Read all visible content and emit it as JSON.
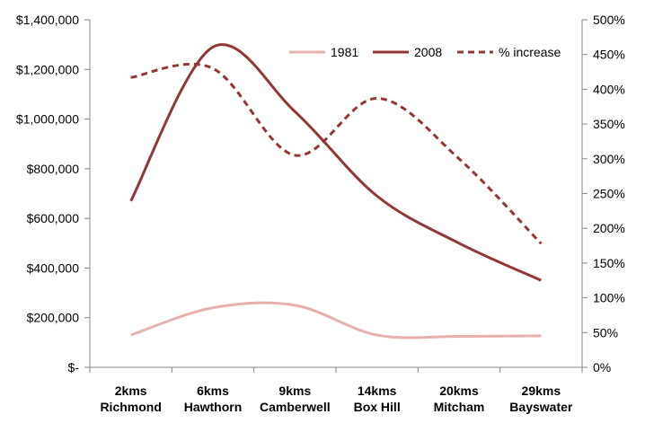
{
  "chart_data": {
    "type": "line",
    "categories": [
      [
        "2kms",
        "Richmond"
      ],
      [
        "6kms",
        "Hawthorn"
      ],
      [
        "9kms",
        "Camberwell"
      ],
      [
        "14kms",
        "Box Hill"
      ],
      [
        "20kms",
        "Mitcham"
      ],
      [
        "29kms",
        "Bayswater"
      ]
    ],
    "y_left": {
      "ylim": [
        0,
        1400000
      ],
      "ticks": [
        {
          "value": 0,
          "label": "$-"
        },
        {
          "value": 200000,
          "label": "$200,000"
        },
        {
          "value": 400000,
          "label": "$400,000"
        },
        {
          "value": 600000,
          "label": "$600,000"
        },
        {
          "value": 800000,
          "label": "$800,000"
        },
        {
          "value": 1000000,
          "label": "$1,000,000"
        },
        {
          "value": 1200000,
          "label": "$1,200,000"
        },
        {
          "value": 1400000,
          "label": "$1,400,000"
        }
      ]
    },
    "y_right": {
      "ylim": [
        0,
        500
      ],
      "ticks": [
        {
          "value": 0,
          "label": "0%"
        },
        {
          "value": 50,
          "label": "50%"
        },
        {
          "value": 100,
          "label": "100%"
        },
        {
          "value": 150,
          "label": "150%"
        },
        {
          "value": 200,
          "label": "200%"
        },
        {
          "value": 250,
          "label": "250%"
        },
        {
          "value": 300,
          "label": "300%"
        },
        {
          "value": 350,
          "label": "350%"
        },
        {
          "value": 400,
          "label": "400%"
        },
        {
          "value": 450,
          "label": "450%"
        },
        {
          "value": 500,
          "label": "500%"
        }
      ]
    },
    "series": [
      {
        "name": "1981",
        "axis": "left",
        "color": "#e6b0ae",
        "dash": "none",
        "values": [
          130000,
          240000,
          250000,
          130000,
          125000,
          127000
        ]
      },
      {
        "name": "2008",
        "axis": "left",
        "color": "#943634",
        "dash": "none",
        "values": [
          670000,
          1290000,
          1030000,
          690000,
          500000,
          350000
        ]
      },
      {
        "name": "% increase",
        "axis": "right",
        "color": "#943634",
        "dash": "dashed",
        "values": [
          417,
          430,
          305,
          387,
          300,
          178
        ]
      }
    ],
    "legend_position": "top-right",
    "grid": false
  }
}
